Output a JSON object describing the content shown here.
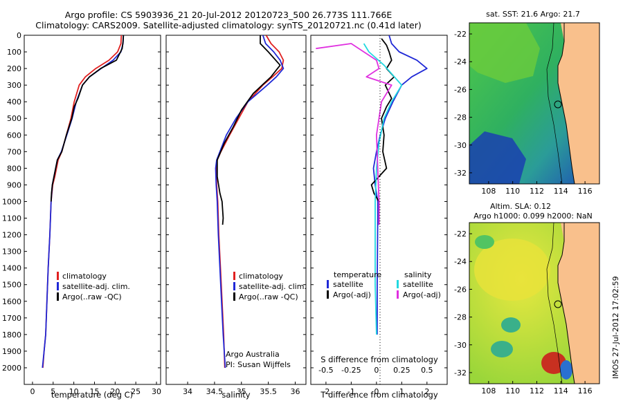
{
  "header": {
    "line1": "Argo profile: CS 5903936_21 20-Jul-2012 20120723_500 26.773S 111.766E",
    "line2": "Climatology: CARS2009. Satellite-adjusted climatology: synTS_20120721.nc (0.41d later)"
  },
  "colors": {
    "climatology": "#e02020",
    "satellite": "#1f28d6",
    "argo": "#000000",
    "satellite_s": "#22d8e0",
    "argo_s": "#e030e0",
    "land": "#f9c08c"
  },
  "chart_data": [
    {
      "id": "temperature",
      "type": "line",
      "xlabel": "temperature (deg C)",
      "ylabel": "",
      "xlim": [
        -2,
        31
      ],
      "ylim": [
        0,
        2100
      ],
      "xticks": [
        0,
        5,
        10,
        15,
        20,
        25,
        30
      ],
      "yticks": [
        0,
        100,
        200,
        300,
        400,
        500,
        600,
        700,
        800,
        900,
        1000,
        1100,
        1200,
        1300,
        1400,
        1500,
        1600,
        1700,
        1800,
        1900,
        2000
      ],
      "legend": [
        "climatology",
        "satellite-adj. clim.",
        "Argo(..raw -QC)"
      ],
      "series": [
        {
          "name": "climatology",
          "color": "#e02020",
          "points": [
            [
              21.5,
              0
            ],
            [
              21.4,
              50
            ],
            [
              20.6,
              100
            ],
            [
              18.5,
              150
            ],
            [
              15.3,
              200
            ],
            [
              12.8,
              250
            ],
            [
              11.3,
              300
            ],
            [
              10.1,
              400
            ],
            [
              9.3,
              500
            ],
            [
              8.2,
              600
            ],
            [
              7.1,
              700
            ],
            [
              6.2,
              750
            ],
            [
              5.4,
              850
            ],
            [
              4.9,
              900
            ],
            [
              4.5,
              1000
            ],
            [
              4.2,
              1200
            ],
            [
              3.8,
              1400
            ],
            [
              3.5,
              1600
            ],
            [
              3.2,
              1800
            ],
            [
              2.8,
              1900
            ],
            [
              2.5,
              2000
            ]
          ]
        },
        {
          "name": "satellite-adj. clim.",
          "color": "#1f28d6",
          "points": [
            [
              22.0,
              0
            ],
            [
              21.9,
              50
            ],
            [
              21.4,
              100
            ],
            [
              19.5,
              150
            ],
            [
              16.6,
              200
            ],
            [
              13.8,
              250
            ],
            [
              12.1,
              300
            ],
            [
              10.6,
              400
            ],
            [
              9.6,
              500
            ],
            [
              8.3,
              600
            ],
            [
              7.0,
              700
            ],
            [
              6.0,
              750
            ],
            [
              5.2,
              850
            ],
            [
              4.8,
              900
            ],
            [
              4.5,
              1000
            ],
            [
              4.2,
              1200
            ],
            [
              3.8,
              1400
            ],
            [
              3.5,
              1600
            ],
            [
              3.2,
              1800
            ],
            [
              2.8,
              1900
            ],
            [
              2.4,
              2000
            ]
          ]
        },
        {
          "name": "Argo(..raw -QC)",
          "color": "#000000",
          "points": [
            [
              22.0,
              0
            ],
            [
              21.9,
              40
            ],
            [
              21.7,
              80
            ],
            [
              20.3,
              150
            ],
            [
              16.5,
              200
            ],
            [
              13.8,
              250
            ],
            [
              12.1,
              300
            ],
            [
              11.0,
              380
            ],
            [
              10.1,
              430
            ],
            [
              9.5,
              500
            ],
            [
              8.2,
              600
            ],
            [
              7.1,
              700
            ],
            [
              6.0,
              750
            ],
            [
              5.2,
              850
            ],
            [
              4.8,
              900
            ],
            [
              4.6,
              950
            ],
            [
              4.5,
              1000
            ]
          ]
        }
      ]
    },
    {
      "id": "salinity",
      "type": "line",
      "xlabel": "salinity",
      "ylabel": "",
      "xlim": [
        33.6,
        36.2
      ],
      "ylim": [
        0,
        2100
      ],
      "xticks": [
        34,
        34.5,
        35,
        35.5,
        36
      ],
      "legend": [
        "climatology",
        "satellite-adj. clim.",
        "Argo(..raw -QC)"
      ],
      "annotations": [
        "Argo Australia",
        "PI: Susan Wijffels"
      ],
      "series": [
        {
          "name": "climatology",
          "color": "#e02020",
          "points": [
            [
              35.46,
              0
            ],
            [
              35.55,
              50
            ],
            [
              35.7,
              100
            ],
            [
              35.78,
              150
            ],
            [
              35.75,
              200
            ],
            [
              35.58,
              250
            ],
            [
              35.4,
              300
            ],
            [
              35.12,
              400
            ],
            [
              34.95,
              500
            ],
            [
              34.78,
              600
            ],
            [
              34.62,
              700
            ],
            [
              34.55,
              750
            ],
            [
              34.53,
              800
            ],
            [
              34.54,
              900
            ],
            [
              34.56,
              1000
            ],
            [
              34.58,
              1200
            ],
            [
              34.61,
              1400
            ],
            [
              34.64,
              1600
            ],
            [
              34.67,
              1800
            ],
            [
              34.69,
              2000
            ]
          ]
        },
        {
          "name": "satellite-adj. clim.",
          "color": "#1f28d6",
          "points": [
            [
              35.4,
              0
            ],
            [
              35.45,
              50
            ],
            [
              35.6,
              100
            ],
            [
              35.72,
              150
            ],
            [
              35.78,
              200
            ],
            [
              35.65,
              250
            ],
            [
              35.48,
              300
            ],
            [
              35.12,
              400
            ],
            [
              34.9,
              500
            ],
            [
              34.72,
              600
            ],
            [
              34.6,
              700
            ],
            [
              34.54,
              750
            ],
            [
              34.52,
              800
            ],
            [
              34.53,
              900
            ],
            [
              34.55,
              1000
            ],
            [
              34.57,
              1200
            ],
            [
              34.6,
              1400
            ],
            [
              34.63,
              1600
            ],
            [
              34.66,
              1800
            ],
            [
              34.7,
              2000
            ]
          ]
        },
        {
          "name": "Argo(..raw -QC)",
          "color": "#000000",
          "points": [
            [
              35.35,
              0
            ],
            [
              35.35,
              50
            ],
            [
              35.5,
              100
            ],
            [
              35.72,
              180
            ],
            [
              35.55,
              250
            ],
            [
              35.22,
              350
            ],
            [
              35.0,
              450
            ],
            [
              34.85,
              550
            ],
            [
              34.68,
              650
            ],
            [
              34.55,
              750
            ],
            [
              34.55,
              850
            ],
            [
              34.6,
              950
            ],
            [
              34.64,
              1000
            ],
            [
              34.65,
              1050
            ],
            [
              34.66,
              1100
            ],
            [
              34.65,
              1140
            ]
          ]
        }
      ]
    },
    {
      "id": "difference",
      "type": "line",
      "xlabel": "T difference from climatology",
      "x2label": "S difference from climatology",
      "xlim": [
        -2.6,
        2.8
      ],
      "ylim": [
        0,
        2100
      ],
      "xticks": [
        -2,
        -1,
        0,
        1,
        2
      ],
      "x2ticks": [
        "-0.5",
        "-0.25",
        "0",
        "0.25",
        "0.5"
      ],
      "legend_titles": [
        "temperature",
        "salinity"
      ],
      "legend": [
        "satellite",
        "Argo(-adj)",
        "satellite",
        "Argo(-adj)"
      ],
      "series": [
        {
          "name": "temperature satellite",
          "color": "#1f28d6",
          "points": [
            [
              0.5,
              0
            ],
            [
              0.6,
              50
            ],
            [
              0.9,
              100
            ],
            [
              1.6,
              150
            ],
            [
              2.0,
              200
            ],
            [
              1.4,
              250
            ],
            [
              1.0,
              300
            ],
            [
              0.65,
              400
            ],
            [
              0.35,
              500
            ],
            [
              0.15,
              600
            ],
            [
              0.0,
              700
            ],
            [
              -0.12,
              800
            ],
            [
              -0.05,
              900
            ],
            [
              0.05,
              1000
            ],
            [
              0.05,
              1100
            ],
            [
              0.03,
              1500
            ],
            [
              0.03,
              1800
            ]
          ]
        },
        {
          "name": "temperature Argo(-adj)",
          "color": "#000000",
          "points": [
            [
              0.2,
              20
            ],
            [
              0.4,
              60
            ],
            [
              0.5,
              100
            ],
            [
              0.6,
              150
            ],
            [
              0.4,
              200
            ],
            [
              0.7,
              250
            ],
            [
              0.35,
              300
            ],
            [
              0.6,
              380
            ],
            [
              0.4,
              430
            ],
            [
              0.2,
              500
            ],
            [
              0.3,
              600
            ],
            [
              0.25,
              700
            ],
            [
              0.4,
              800
            ],
            [
              -0.2,
              900
            ],
            [
              -0.1,
              950
            ],
            [
              0.1,
              1000
            ],
            [
              0.1,
              1140
            ]
          ]
        },
        {
          "name": "salinity satellite",
          "color": "#22d8e0",
          "points": [
            [
              -0.5,
              50
            ],
            [
              -0.3,
              100
            ],
            [
              0.3,
              180
            ],
            [
              1.0,
              300
            ],
            [
              0.6,
              400
            ],
            [
              0.3,
              500
            ],
            [
              0.1,
              650
            ],
            [
              0.0,
              800
            ],
            [
              -0.05,
              1000
            ],
            [
              -0.05,
              1500
            ],
            [
              0.0,
              1800
            ]
          ]
        },
        {
          "name": "salinity Argo(-adj)",
          "color": "#e030e0",
          "points": [
            [
              -2.4,
              80
            ],
            [
              -1.0,
              50
            ],
            [
              0.0,
              150
            ],
            [
              0.1,
              200
            ],
            [
              -0.4,
              250
            ],
            [
              0.6,
              300
            ],
            [
              0.2,
              400
            ],
            [
              0.0,
              600
            ],
            [
              0.05,
              800
            ],
            [
              0.1,
              1000
            ],
            [
              0.1,
              1140
            ]
          ]
        }
      ]
    },
    {
      "id": "sst_map",
      "type": "heatmap",
      "title": "sat. SST: 21.6 Argo: 21.7",
      "xlim": [
        106.4,
        117.2
      ],
      "ylim": [
        -32.8,
        -21.2
      ],
      "xticks": [
        108,
        110,
        112,
        114,
        116
      ],
      "yticks": [
        -22,
        -24,
        -26,
        -28,
        -30,
        -32
      ],
      "marker": {
        "lon": 111.766,
        "lat": -26.773
      }
    },
    {
      "id": "sla_map",
      "type": "heatmap",
      "title": "Altim. SLA: 0.12",
      "subtitle": "Argo h1000: 0.099 h2000: NaN",
      "xlim": [
        106.4,
        117.2
      ],
      "ylim": [
        -32.8,
        -21.2
      ],
      "xticks": [
        108,
        110,
        112,
        114,
        116
      ],
      "yticks": [
        -22,
        -24,
        -26,
        -28,
        -30,
        -32
      ],
      "marker": {
        "lon": 111.766,
        "lat": -26.773
      },
      "side_label": "IMOS 27-Jul-2012 17:02:59"
    }
  ]
}
